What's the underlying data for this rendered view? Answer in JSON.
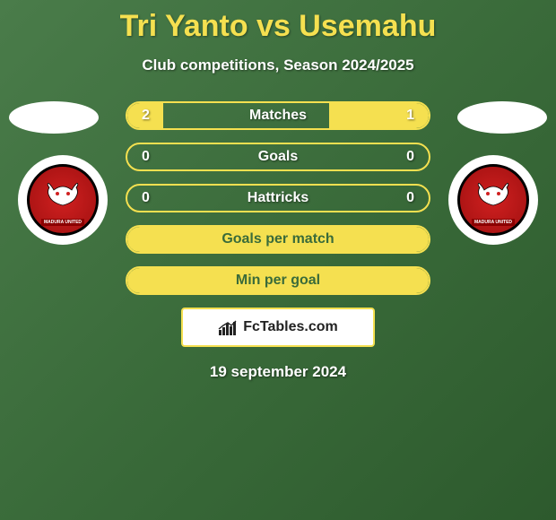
{
  "header": {
    "title": "Tri Yanto vs Usemahu",
    "subtitle": "Club competitions, Season 2024/2025"
  },
  "stats": {
    "rows": [
      {
        "label": "Matches",
        "left": "2",
        "right": "1",
        "left_fill_pct": 12,
        "right_fill_pct": 33,
        "style": "split"
      },
      {
        "label": "Goals",
        "left": "0",
        "right": "0",
        "left_fill_pct": 0,
        "right_fill_pct": 0,
        "style": "split"
      },
      {
        "label": "Hattricks",
        "left": "0",
        "right": "0",
        "left_fill_pct": 0,
        "right_fill_pct": 0,
        "style": "split"
      },
      {
        "label": "Goals per match",
        "left": "",
        "right": "",
        "style": "full"
      },
      {
        "label": "Min per goal",
        "left": "",
        "right": "",
        "style": "full"
      }
    ]
  },
  "branding": {
    "text": "FcTables.com"
  },
  "footer": {
    "date": "19 september 2024"
  },
  "colors": {
    "accent": "#f5e050",
    "bg_from": "#4a7c4a",
    "bg_to": "#2d5a2d",
    "text": "#ffffff"
  }
}
